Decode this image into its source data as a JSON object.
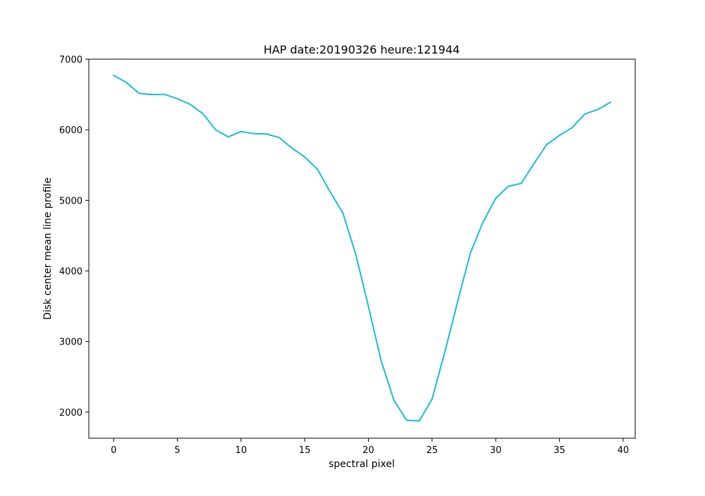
{
  "chart_data": {
    "type": "line",
    "title": "HAP date:20190326 heure:121944",
    "xlabel": "spectral pixel",
    "ylabel": "Disk center mean line profile",
    "xlim": [
      -1.95,
      40.95
    ],
    "ylim": [
      1630,
      7000
    ],
    "xticks": [
      0,
      5,
      10,
      15,
      20,
      25,
      30,
      35,
      40
    ],
    "yticks": [
      2000,
      3000,
      4000,
      5000,
      6000,
      7000
    ],
    "grid": false,
    "legend": "none",
    "series": [
      {
        "color": "#17becf",
        "x": [
          0,
          1,
          2,
          3,
          4,
          5,
          6,
          7,
          8,
          9,
          10,
          11,
          12,
          13,
          14,
          15,
          16,
          17,
          18,
          19,
          20,
          21,
          22,
          23,
          24,
          25,
          26,
          27,
          28,
          29,
          30,
          31,
          32,
          33,
          34,
          35,
          36,
          37,
          38,
          39
        ],
        "y": [
          6770,
          6670,
          6515,
          6500,
          6500,
          6440,
          6360,
          6230,
          6000,
          5900,
          5975,
          5945,
          5940,
          5890,
          5740,
          5615,
          5440,
          5120,
          4820,
          4240,
          3500,
          2730,
          2170,
          1885,
          1875,
          2185,
          2850,
          3560,
          4250,
          4690,
          5030,
          5200,
          5240,
          5520,
          5790,
          5920,
          6030,
          6225,
          6285,
          6390
        ]
      }
    ]
  }
}
